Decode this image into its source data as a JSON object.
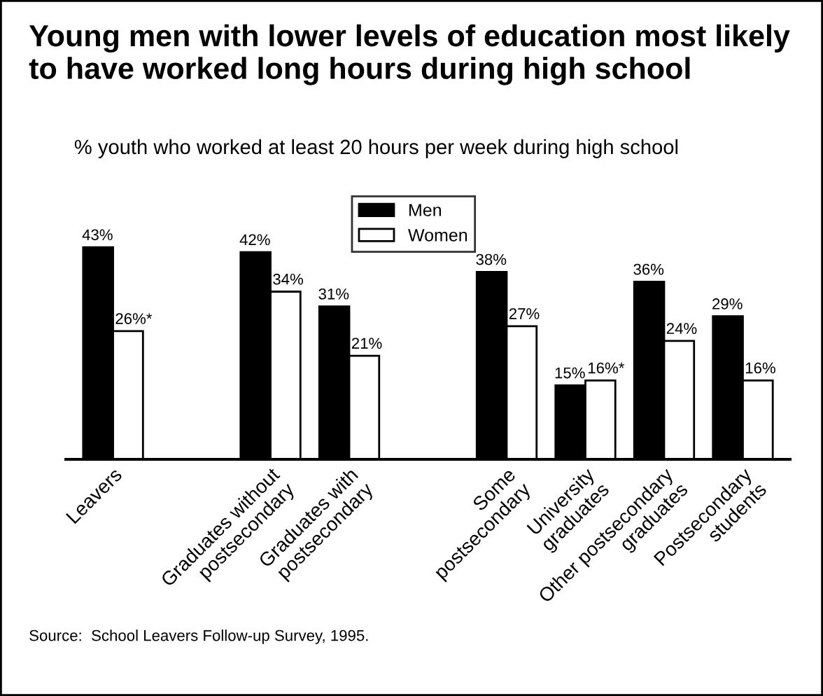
{
  "chart_data": {
    "type": "bar",
    "title": "Young men with lower levels of education most likely to have worked long hours during high school",
    "subtitle": "% youth who worked at least 20 hours per week during high school",
    "categories": [
      "Leavers",
      null,
      "Graduates without\npostsecondary",
      "Graduates with\npostsecondary",
      null,
      "Some\npostsecondary",
      "University\ngraduates",
      "Other postsecondary\ngraduates",
      "Postsecondary\nstudents"
    ],
    "series": [
      {
        "name": "Men",
        "color": "#000000",
        "values": [
          43,
          null,
          42,
          31,
          null,
          38,
          15,
          36,
          29
        ],
        "value_labels": [
          "43%",
          null,
          "42%",
          "31%",
          null,
          "38%",
          "15%",
          "36%",
          "29%"
        ]
      },
      {
        "name": "Women",
        "color": "#ffffff",
        "values": [
          26,
          null,
          34,
          21,
          null,
          27,
          16,
          24,
          16
        ],
        "value_labels": [
          "26%*",
          null,
          "34%",
          "21%",
          null,
          "27%",
          "16%*",
          "24%",
          "16%"
        ]
      }
    ],
    "tick_labels": "x",
    "legend": "top",
    "grid": false,
    "annotations": [
      "Source:  School Leavers Follow-up Survey, 1995."
    ]
  }
}
